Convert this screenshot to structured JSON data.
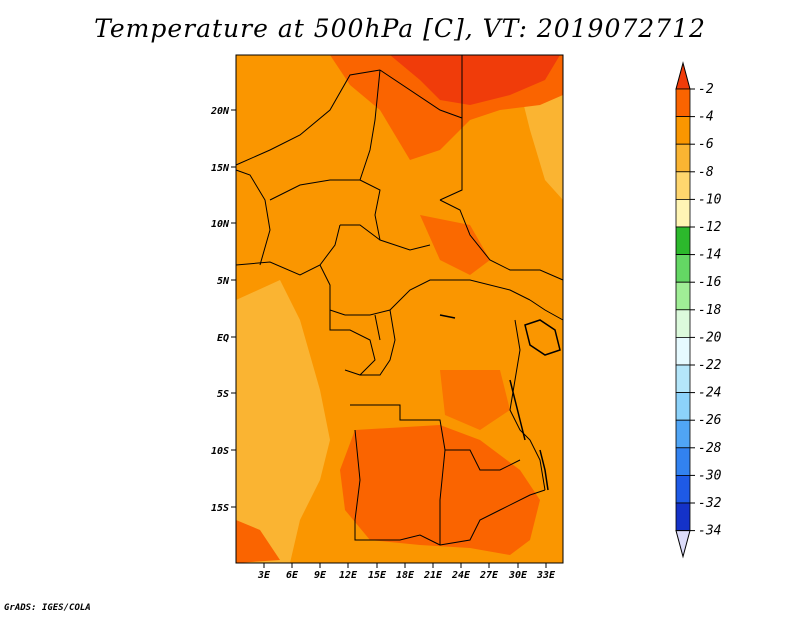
{
  "title": "Temperature at 500hPa [C], VT: 2019072712",
  "footer": "GrADS: IGES/COLA",
  "map": {
    "region": "Central Africa",
    "lat_ticks": [
      "20N",
      "15N",
      "10N",
      "5N",
      "EQ",
      "5S",
      "10S",
      "15S"
    ],
    "lon_ticks": [
      "3E",
      "6E",
      "9E",
      "12E",
      "15E",
      "18E",
      "21E",
      "24E",
      "27E",
      "30E",
      "33E"
    ]
  },
  "colorbar": {
    "labels": [
      "-2",
      "-4",
      "-6",
      "-8",
      "-10",
      "-12",
      "-14",
      "-16",
      "-18",
      "-20",
      "-22",
      "-24",
      "-26",
      "-28",
      "-30",
      "-32",
      "-34"
    ],
    "colors": [
      "#f03c0a",
      "#fa6400",
      "#fa9600",
      "#fab432",
      "#ffd66e",
      "#fff5b4",
      "#2cb92c",
      "#64d764",
      "#a0ee96",
      "#dcfadc",
      "#e6faff",
      "#b4e6fa",
      "#8cd2fa",
      "#50a5f5",
      "#3282f0",
      "#1e5ae6",
      "#1432c8",
      "#0a0f78",
      "#dcdcfa"
    ]
  }
}
